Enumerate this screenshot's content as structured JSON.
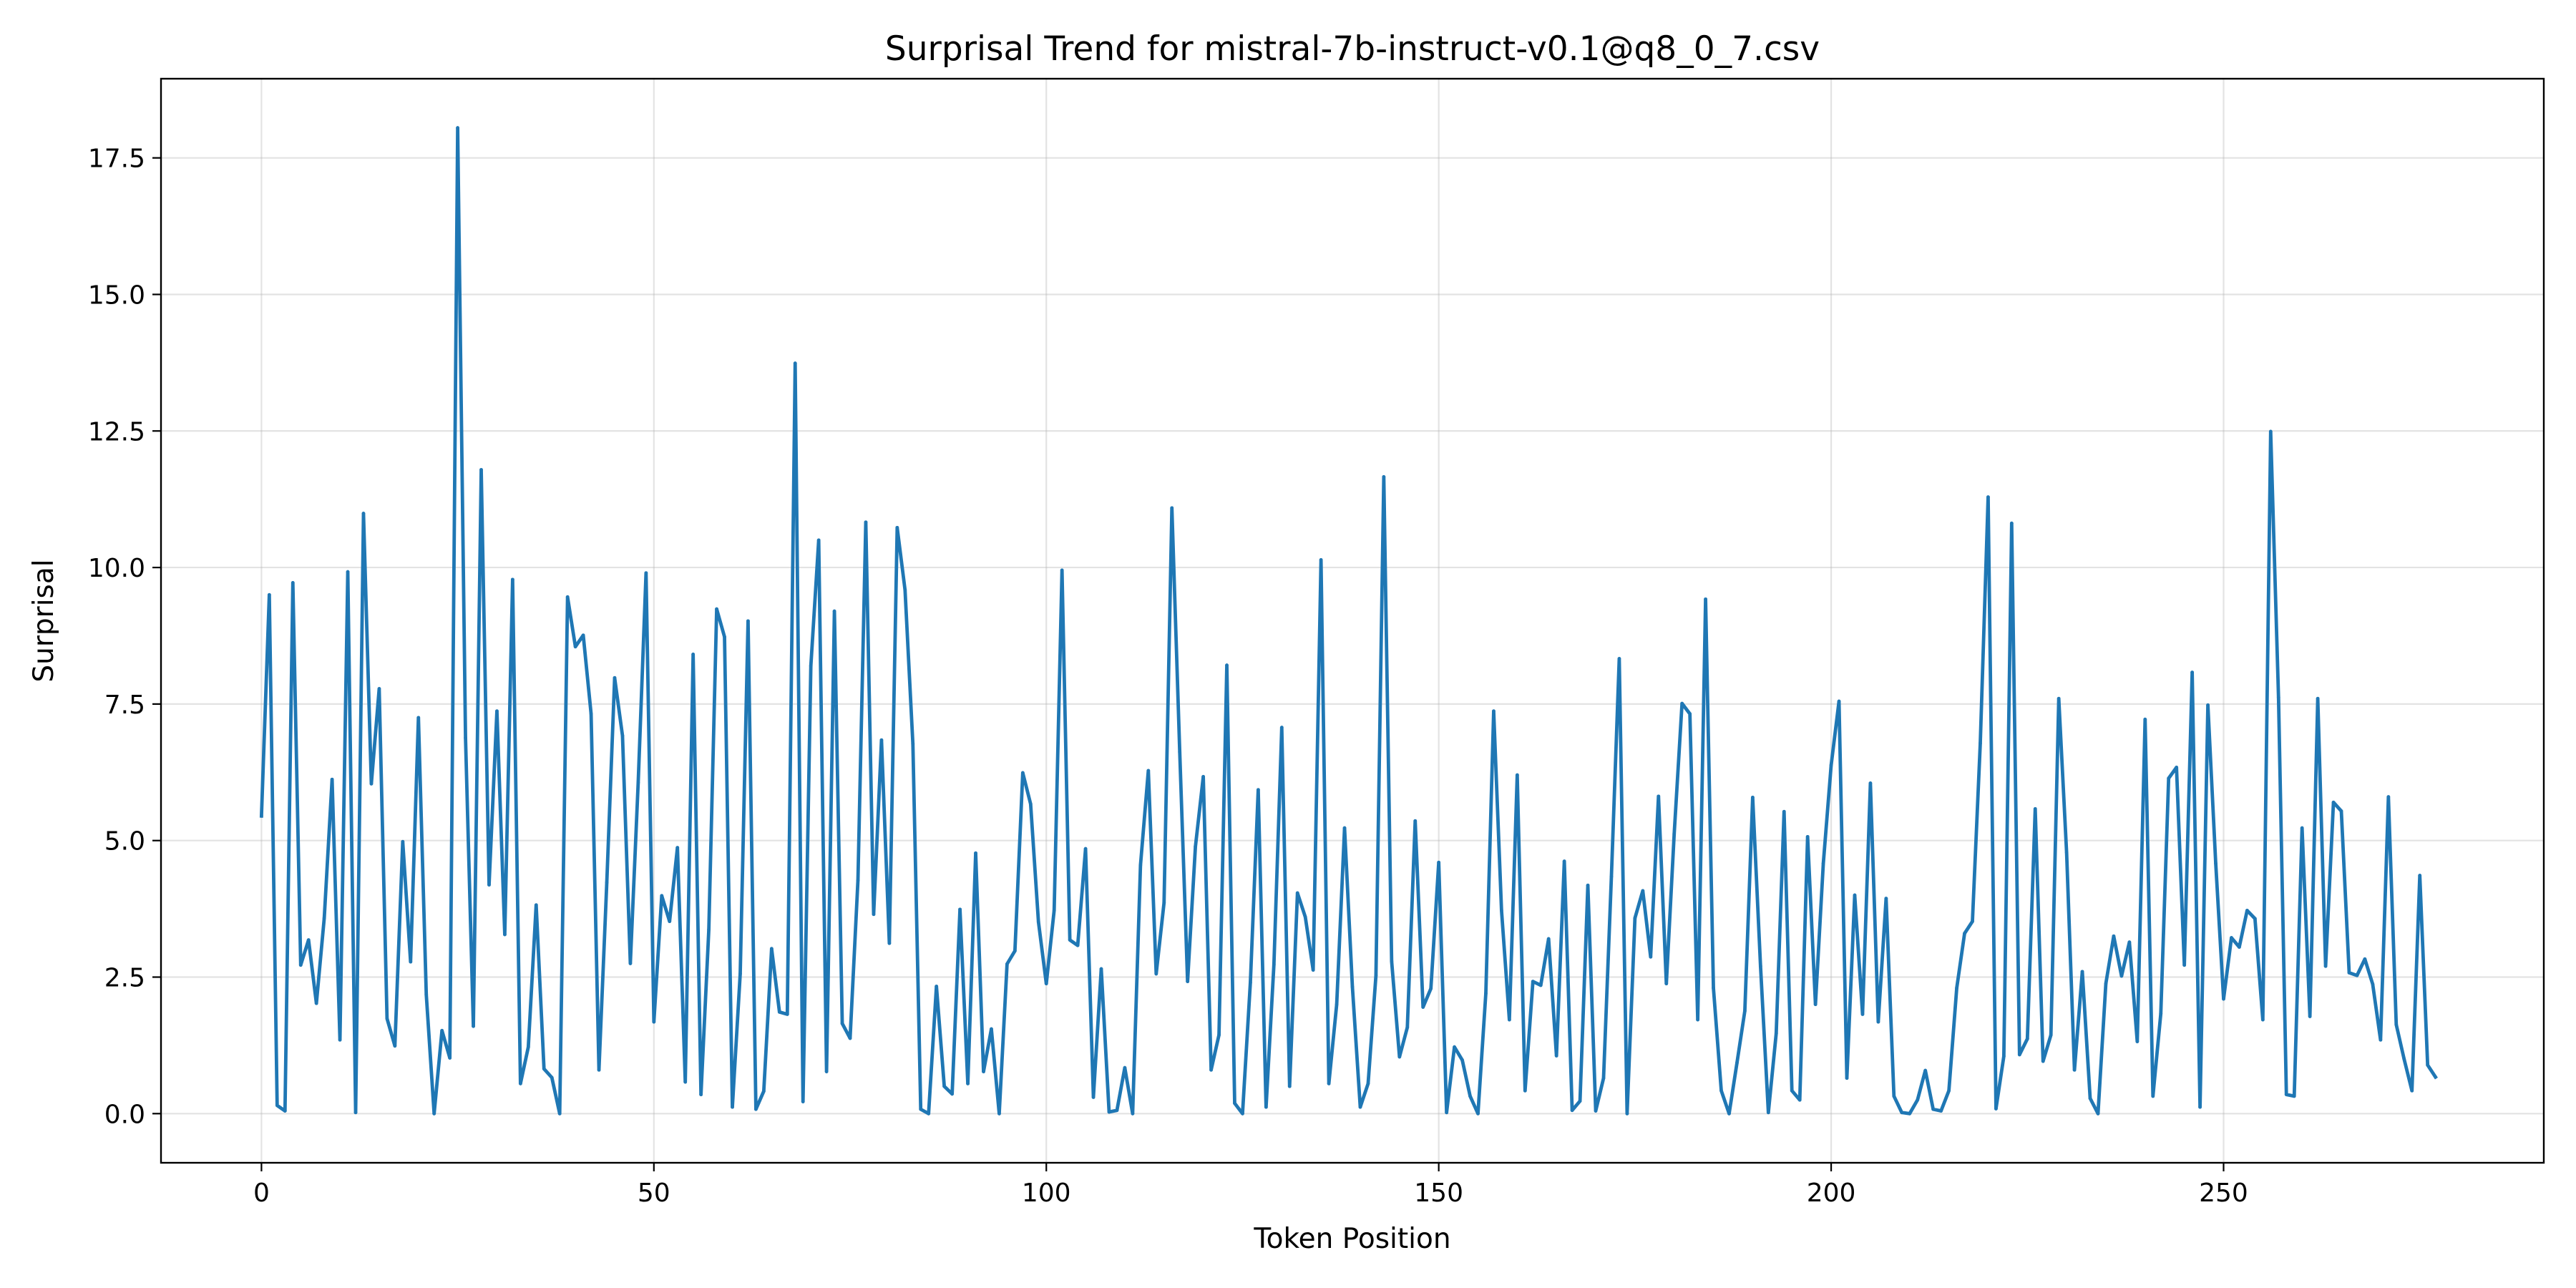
{
  "chart_data": {
    "type": "line",
    "title": "Surprisal Trend for mistral-7b-instruct-v0.1@q8_0_7.csv",
    "xlabel": "Token Position",
    "ylabel": "Surprisal",
    "xlim": [
      -12.8,
      290.8
    ],
    "ylim": [
      -0.9,
      18.95
    ],
    "xticks": [
      0,
      50,
      100,
      150,
      200,
      250
    ],
    "xtick_labels": [
      "0",
      "50",
      "100",
      "150",
      "200",
      "250"
    ],
    "yticks": [
      0.0,
      2.5,
      5.0,
      7.5,
      10.0,
      12.5,
      15.0,
      17.5
    ],
    "ytick_labels": [
      "0.0",
      "2.5",
      "5.0",
      "7.5",
      "10.0",
      "12.5",
      "15.0",
      "17.5"
    ],
    "grid": true,
    "color": "#1f77b4",
    "series": [
      {
        "values": [
          5.45,
          9.5,
          0.15,
          0.05,
          9.72,
          2.72,
          3.18,
          2.02,
          3.58,
          6.12,
          1.35,
          9.92,
          0.02,
          10.99,
          6.04,
          7.78,
          1.74,
          1.24,
          4.98,
          2.78,
          7.25,
          2.18,
          0.0,
          1.52,
          1.02,
          18.05,
          6.88,
          1.6,
          11.79,
          4.19,
          7.37,
          3.28,
          9.78,
          0.55,
          1.22,
          3.82,
          0.82,
          0.66,
          0.0,
          9.46,
          8.55,
          8.76,
          7.32,
          0.8,
          4.23,
          7.98,
          6.92,
          2.75,
          6.06,
          9.9,
          1.68,
          3.99,
          3.52,
          4.87,
          0.58,
          8.41,
          0.35,
          3.37,
          9.24,
          8.73,
          0.12,
          2.56,
          9.02,
          0.08,
          0.41,
          3.02,
          1.86,
          1.82,
          13.74,
          0.22,
          8.2,
          10.5,
          0.77,
          9.2,
          1.65,
          1.38,
          4.27,
          10.83,
          3.65,
          6.84,
          3.12,
          10.73,
          9.59,
          6.77,
          0.08,
          0.0,
          2.33,
          0.5,
          0.36,
          3.74,
          0.55,
          4.77,
          0.77,
          1.55,
          0.0,
          2.74,
          2.98,
          6.24,
          5.67,
          3.51,
          2.38,
          3.72,
          9.95,
          3.18,
          3.08,
          4.85,
          0.3,
          2.65,
          0.03,
          0.06,
          0.84,
          0.0,
          4.55,
          6.28,
          2.56,
          3.86,
          11.09,
          6.62,
          2.42,
          4.89,
          6.17,
          0.8,
          1.44,
          8.21,
          0.19,
          0.0,
          2.4,
          5.93,
          0.12,
          2.73,
          7.07,
          0.5,
          4.04,
          3.6,
          2.63,
          10.14,
          0.55,
          2.0,
          5.23,
          2.32,
          0.12,
          0.55,
          2.53,
          11.66,
          2.79,
          1.04,
          1.58,
          5.36,
          1.95,
          2.29,
          4.6,
          0.02,
          1.22,
          0.98,
          0.32,
          0.0,
          2.2,
          7.37,
          3.72,
          1.72,
          6.2,
          0.42,
          2.42,
          2.35,
          3.2,
          1.06,
          4.62,
          0.06,
          0.23,
          4.18,
          0.05,
          0.65,
          4.34,
          8.33,
          0.0,
          3.58,
          4.08,
          2.87,
          5.81,
          2.38,
          5.12,
          7.51,
          7.32,
          1.72,
          9.42,
          2.3,
          0.42,
          0.0,
          0.93,
          1.88,
          5.79,
          2.7,
          0.02,
          1.47,
          5.53,
          0.42,
          0.25,
          5.07,
          2.0,
          4.58,
          6.38,
          7.55,
          0.65,
          4.0,
          1.82,
          6.05,
          1.68,
          3.94,
          0.32,
          0.02,
          0.0,
          0.25,
          0.79,
          0.08,
          0.05,
          0.42,
          2.3,
          3.3,
          3.52,
          6.78,
          11.29,
          0.09,
          1.05,
          10.81,
          1.08,
          1.37,
          5.58,
          0.96,
          1.44,
          7.6,
          4.78,
          0.8,
          2.6,
          0.28,
          0.0,
          2.38,
          3.25,
          2.52,
          3.14,
          1.32,
          7.22,
          0.32,
          1.83,
          6.14,
          6.34,
          2.72,
          8.08,
          0.12,
          7.48,
          4.58,
          2.1,
          3.22,
          3.05,
          3.72,
          3.57,
          1.72,
          12.49,
          7.62,
          0.35,
          0.32,
          5.23,
          1.78,
          7.6,
          2.7,
          5.7,
          5.54,
          2.58,
          2.53,
          2.83,
          2.37,
          1.35,
          5.8,
          1.63,
          1.0,
          0.42,
          4.36,
          0.89,
          0.67
        ]
      }
    ]
  }
}
